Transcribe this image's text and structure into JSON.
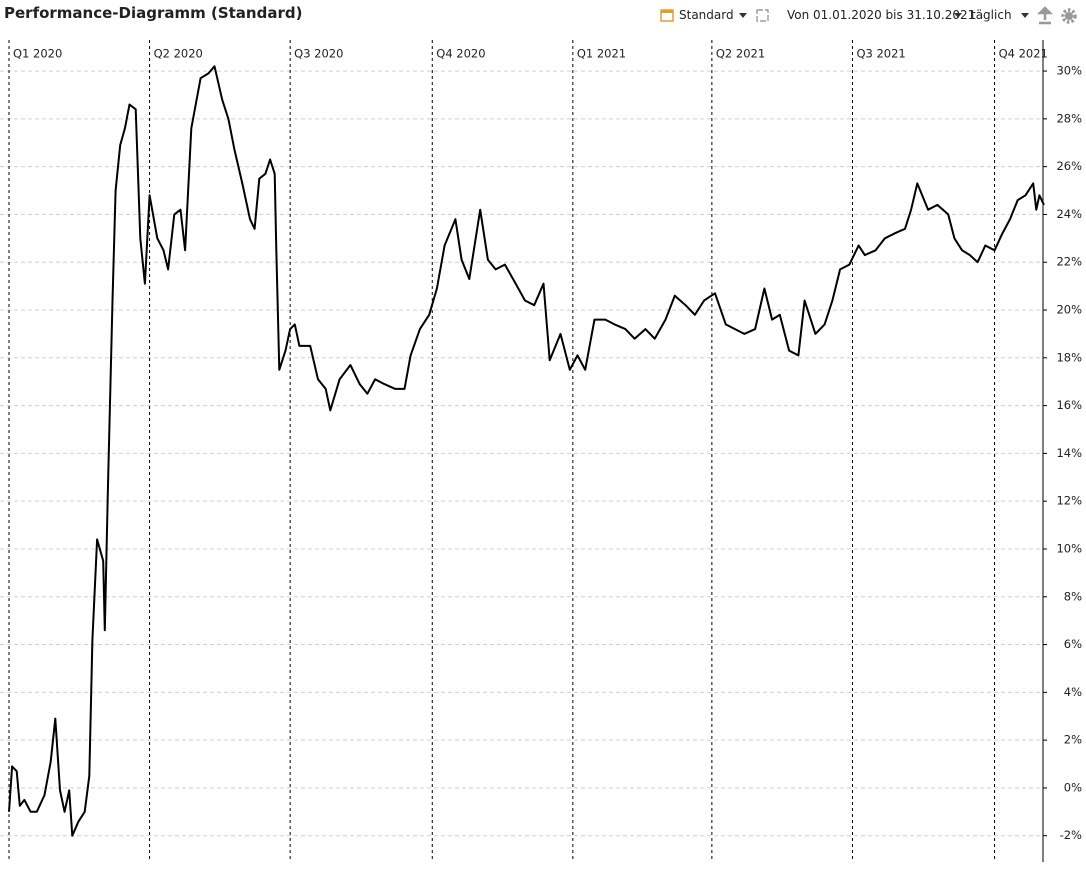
{
  "toolbar": {
    "title": "Performance-Diagramm (Standard)",
    "view": "Standard",
    "period": "Von 01.01.2020 bis 31.10.2021",
    "interval": "täglich"
  },
  "chart_data": {
    "type": "line",
    "x": [
      0,
      2,
      5,
      7,
      10,
      14,
      18,
      23,
      27,
      30,
      33,
      36,
      39,
      41,
      45,
      49,
      52,
      54,
      57,
      61,
      62,
      64,
      67,
      69,
      72,
      75,
      78,
      82,
      85,
      88,
      91,
      96,
      100,
      103,
      107,
      111,
      114,
      118,
      124,
      129,
      133,
      138,
      142,
      146,
      151,
      156,
      159,
      162,
      166,
      169,
      172,
      173,
      175,
      179,
      182,
      185,
      188,
      195,
      200,
      205,
      208,
      214,
      221,
      227,
      232,
      237,
      243,
      250,
      256,
      260,
      266,
      272,
      277,
      282,
      289,
      293,
      298,
      305,
      310,
      315,
      321,
      328,
      334,
      340,
      346,
      350,
      357,
      363,
      368,
      373,
      379,
      386,
      392,
      399,
      405,
      412,
      418,
      425,
      431,
      438,
      444,
      450,
      457,
      464,
      470,
      476,
      483,
      489,
      494,
      499,
      505,
      511,
      515,
      522,
      528,
      533,
      538,
      544,
      550,
      554,
      561,
      567,
      573,
      580,
      584,
      588,
      595,
      601,
      608,
      612,
      617,
      622,
      627,
      632,
      638,
      643,
      648,
      653,
      658,
      663,
      665,
      667,
      670
    ],
    "series": [
      {
        "color": "#000000",
        "values": [
          -1.0,
          0.9,
          0.7,
          -0.75,
          -0.5,
          -1.0,
          -1.0,
          -0.3,
          1.1,
          2.9,
          -0.1,
          -1.0,
          -0.1,
          -2.0,
          -1.4,
          -1.0,
          0.5,
          6.2,
          10.4,
          9.5,
          6.6,
          12.5,
          20.4,
          25.0,
          26.9,
          27.6,
          28.6,
          28.4,
          23.0,
          21.1,
          24.8,
          23.0,
          22.5,
          21.7,
          24.0,
          24.2,
          22.5,
          27.6,
          29.7,
          29.9,
          30.2,
          28.8,
          28.0,
          26.7,
          25.3,
          23.8,
          23.4,
          25.5,
          25.7,
          26.3,
          25.7,
          22.7,
          17.5,
          18.3,
          19.2,
          19.4,
          18.5,
          18.5,
          17.1,
          16.7,
          15.8,
          17.1,
          17.7,
          16.9,
          16.5,
          17.1,
          16.9,
          16.7,
          16.7,
          18.1,
          19.2,
          19.8,
          20.9,
          22.7,
          23.8,
          22.1,
          21.3,
          24.2,
          22.1,
          21.7,
          21.9,
          21.1,
          20.4,
          20.2,
          21.1,
          17.9,
          19.0,
          17.5,
          18.1,
          17.5,
          19.6,
          19.6,
          19.4,
          19.2,
          18.8,
          19.2,
          18.8,
          19.6,
          20.6,
          20.2,
          19.8,
          20.4,
          20.7,
          19.4,
          19.2,
          19.0,
          19.2,
          20.9,
          19.6,
          19.8,
          18.3,
          18.1,
          20.4,
          19.0,
          19.4,
          20.4,
          21.7,
          21.9,
          22.7,
          22.3,
          22.5,
          23.0,
          23.2,
          23.4,
          24.2,
          25.3,
          24.2,
          24.4,
          24.0,
          23.0,
          22.5,
          22.3,
          22.0,
          22.7,
          22.5,
          23.2,
          23.8,
          24.6,
          24.8,
          25.3,
          24.2,
          24.8,
          24.4
        ]
      }
    ],
    "xlim": [
      0,
      670
    ],
    "xticks": [
      {
        "value": 0,
        "label": "Q1 2020"
      },
      {
        "value": 91,
        "label": "Q2 2020"
      },
      {
        "value": 182,
        "label": "Q3 2020"
      },
      {
        "value": 274,
        "label": "Q4 2020"
      },
      {
        "value": 365,
        "label": "Q1 2021"
      },
      {
        "value": 455,
        "label": "Q2 2021"
      },
      {
        "value": 546,
        "label": "Q3 2021"
      },
      {
        "value": 638,
        "label": "Q4 2021"
      }
    ],
    "ylim": [
      -3.1,
      31.3
    ],
    "yticks": [
      {
        "value": -2,
        "label": "-2%"
      },
      {
        "value": 0,
        "label": "0%"
      },
      {
        "value": 2,
        "label": "2%"
      },
      {
        "value": 4,
        "label": "4%"
      },
      {
        "value": 6,
        "label": "6%"
      },
      {
        "value": 8,
        "label": "8%"
      },
      {
        "value": 10,
        "label": "10%"
      },
      {
        "value": 12,
        "label": "12%"
      },
      {
        "value": 14,
        "label": "14%"
      },
      {
        "value": 16,
        "label": "16%"
      },
      {
        "value": 18,
        "label": "18%"
      },
      {
        "value": 20,
        "label": "20%"
      },
      {
        "value": 22,
        "label": "22%"
      },
      {
        "value": 24,
        "label": "24%"
      },
      {
        "value": 26,
        "label": "26%"
      },
      {
        "value": 28,
        "label": "28%"
      },
      {
        "value": 30,
        "label": "30%"
      }
    ],
    "grid": true
  }
}
